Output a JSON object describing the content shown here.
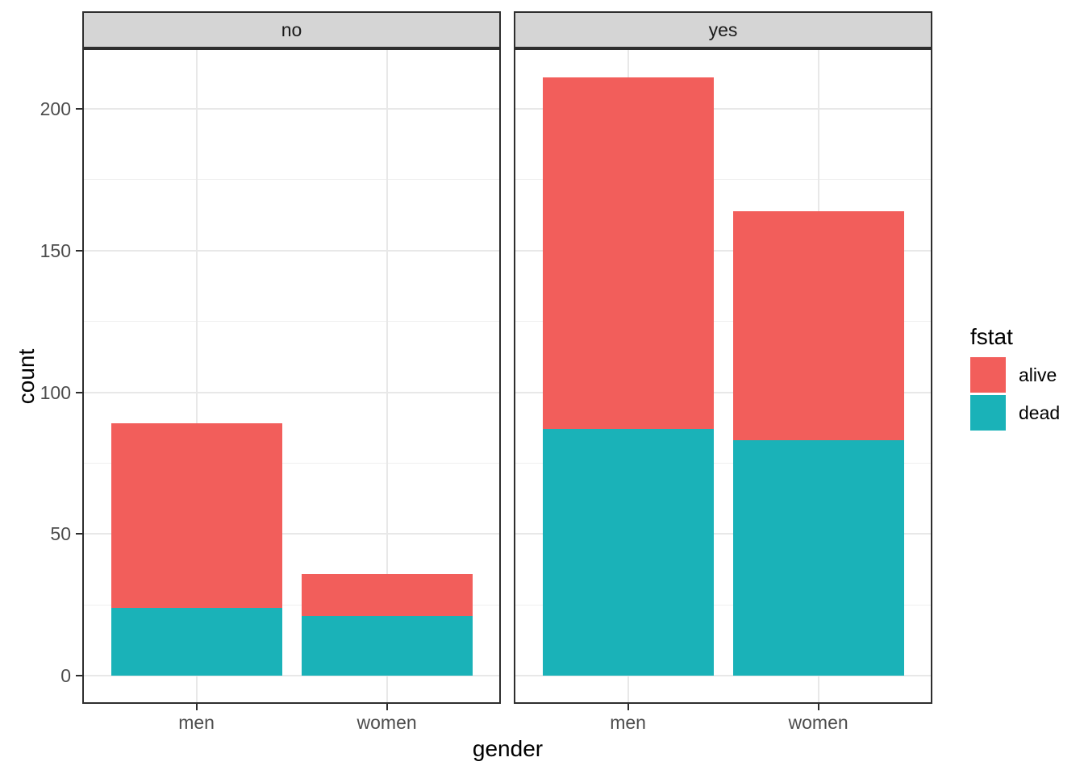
{
  "chart_data": {
    "type": "bar",
    "stacked": true,
    "title": "",
    "xlabel": "gender",
    "ylabel": "count",
    "categories": [
      "men",
      "women"
    ],
    "facets": [
      {
        "label": "no",
        "bars": [
          {
            "category": "men",
            "segments": {
              "alive": 65,
              "dead": 24
            },
            "total": 89
          },
          {
            "category": "women",
            "segments": {
              "alive": 15,
              "dead": 21
            },
            "total": 36
          }
        ]
      },
      {
        "label": "yes",
        "bars": [
          {
            "category": "men",
            "segments": {
              "alive": 124,
              "dead": 87
            },
            "total": 211
          },
          {
            "category": "women",
            "segments": {
              "alive": 81,
              "dead": 83
            },
            "total": 164
          }
        ]
      }
    ],
    "stack_order_bottom_to_top": [
      "dead",
      "alive"
    ],
    "series_colors": {
      "alive": "#F25E5B",
      "dead": "#1AB2B8"
    },
    "y_ticks": [
      0,
      50,
      100,
      150,
      200
    ],
    "y_tick_labels": [
      "0",
      "50",
      "100",
      "150",
      "200"
    ],
    "y_minor_ticks": [
      25,
      75,
      125,
      175
    ],
    "ylim": [
      -10.5,
      221.5
    ],
    "grid": true,
    "legend": {
      "title": "fstat",
      "entries": [
        {
          "label": "alive",
          "color": "#F25E5B"
        },
        {
          "label": "dead",
          "color": "#1AB2B8"
        }
      ],
      "position": "right"
    },
    "theme": {
      "strip_fill": "#D5D5D5",
      "panel_border": "#2E2E2E",
      "grid_major": "#E8E8E8",
      "grid_minor": "#EFEFEF",
      "axis_text_color": "#4D4D4D",
      "title_color": "#000000",
      "background": "#FFFFFF"
    }
  }
}
